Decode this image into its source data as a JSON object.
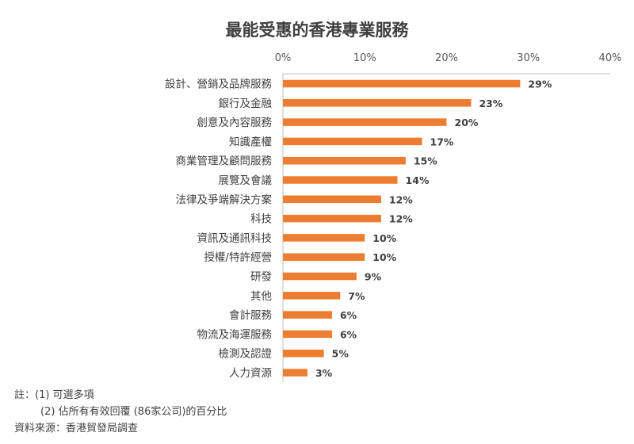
{
  "title": "最能受惠的香港專業服務",
  "chart_data": {
    "type": "bar",
    "orientation": "horizontal",
    "title": "最能受惠的香港專業服務",
    "categories": [
      "設計、營銷及品牌服務",
      "銀行及金融",
      "創意及內容服務",
      "知識產權",
      "商業管理及顧問服務",
      "展覽及會議",
      "法律及爭端解決方案",
      "科技",
      "資訊及通訊科技",
      "授權/特許經營",
      "研發",
      "其他",
      "會計服務",
      "物流及海運服務",
      "檢測及認證",
      "人力資源"
    ],
    "values": [
      29,
      23,
      20,
      17,
      15,
      14,
      12,
      12,
      10,
      10,
      9,
      7,
      6,
      6,
      5,
      3
    ],
    "value_labels": [
      "29%",
      "23%",
      "20%",
      "17%",
      "15%",
      "14%",
      "12%",
      "12%",
      "10%",
      "10%",
      "9%",
      "7%",
      "6%",
      "6%",
      "5%",
      "3%"
    ],
    "xlim": [
      0,
      40
    ],
    "ticks": [
      0,
      10,
      20,
      30,
      40
    ],
    "tick_labels": [
      "0%",
      "10%",
      "20%",
      "30%",
      "40%"
    ],
    "axis_position": "top",
    "grid": false,
    "bar_color": "#ED7D31"
  },
  "notes": {
    "line1": "註：(1) 可選多項",
    "line2": "        (2) 佔所有有效回覆 (86家公司)的百分比",
    "line3": "資料來源：香港貿發局調查"
  }
}
